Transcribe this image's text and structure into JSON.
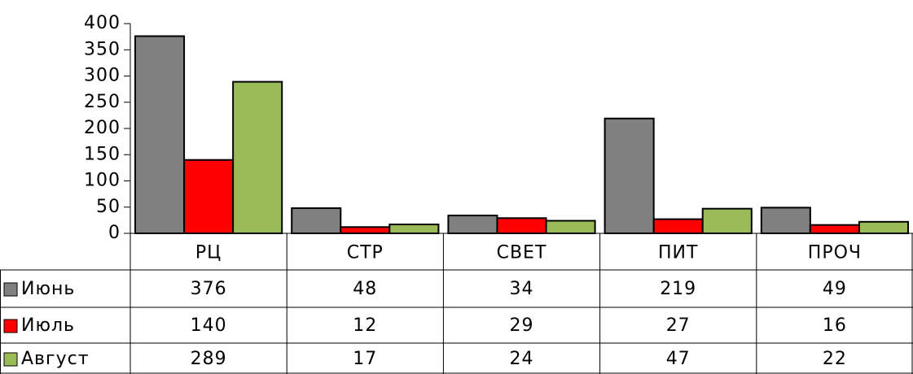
{
  "chart_data": {
    "type": "bar",
    "categories": [
      "РЦ",
      "СТР",
      "СВЕТ",
      "ПИТ",
      "ПРОЧ"
    ],
    "series": [
      {
        "name": "Июнь",
        "color": "#808080",
        "values": [
          376,
          48,
          34,
          219,
          49
        ]
      },
      {
        "name": "Июль",
        "color": "#ff0000",
        "values": [
          140,
          12,
          29,
          27,
          16
        ]
      },
      {
        "name": "Август",
        "color": "#9bbb59",
        "values": [
          289,
          17,
          24,
          47,
          22
        ]
      }
    ],
    "ylim": [
      0,
      400
    ],
    "yticks": [
      0,
      50,
      100,
      150,
      200,
      250,
      300,
      350,
      400
    ],
    "grid": false
  }
}
